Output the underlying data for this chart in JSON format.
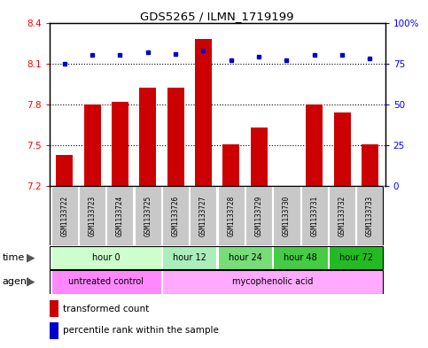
{
  "title": "GDS5265 / ILMN_1719199",
  "samples": [
    "GSM1133722",
    "GSM1133723",
    "GSM1133724",
    "GSM1133725",
    "GSM1133726",
    "GSM1133727",
    "GSM1133728",
    "GSM1133729",
    "GSM1133730",
    "GSM1133731",
    "GSM1133732",
    "GSM1133733"
  ],
  "transformed_counts": [
    7.43,
    7.8,
    7.82,
    7.92,
    7.92,
    8.28,
    7.51,
    7.63,
    7.2,
    7.8,
    7.74,
    7.51
  ],
  "percentile_ranks": [
    75,
    80,
    80,
    82,
    81,
    83,
    77,
    79,
    77,
    80,
    80,
    78
  ],
  "ylim_left": [
    7.2,
    8.4
  ],
  "ylim_right": [
    0,
    100
  ],
  "yticks_left": [
    7.2,
    7.5,
    7.8,
    8.1,
    8.4
  ],
  "yticks_right": [
    0,
    25,
    50,
    75,
    100
  ],
  "ytick_labels_left": [
    "7.2",
    "7.5",
    "7.8",
    "8.1",
    "8.4"
  ],
  "ytick_labels_right": [
    "0",
    "25",
    "50",
    "75",
    "100%"
  ],
  "hlines": [
    7.5,
    7.8,
    8.1
  ],
  "bar_color": "#cc0000",
  "dot_color": "#0000cc",
  "bar_width": 0.6,
  "time_groups": [
    {
      "label": "hour 0",
      "indices": [
        0,
        1,
        2,
        3
      ],
      "color": "#ccffcc"
    },
    {
      "label": "hour 12",
      "indices": [
        4,
        5
      ],
      "color": "#aaeebb"
    },
    {
      "label": "hour 24",
      "indices": [
        6,
        7
      ],
      "color": "#77dd77"
    },
    {
      "label": "hour 48",
      "indices": [
        8,
        9
      ],
      "color": "#44cc44"
    },
    {
      "label": "hour 72",
      "indices": [
        10,
        11
      ],
      "color": "#22bb22"
    }
  ],
  "agent_groups": [
    {
      "label": "untreated control",
      "indices": [
        0,
        1,
        2,
        3
      ],
      "color": "#ff88ff"
    },
    {
      "label": "mycophenolic acid",
      "indices": [
        4,
        5,
        6,
        7,
        8,
        9,
        10,
        11
      ],
      "color": "#ffaaff"
    }
  ],
  "legend_bar_label": "transformed count",
  "legend_dot_label": "percentile rank within the sample",
  "sample_box_color": "#c8c8c8",
  "border_color": "#888888"
}
